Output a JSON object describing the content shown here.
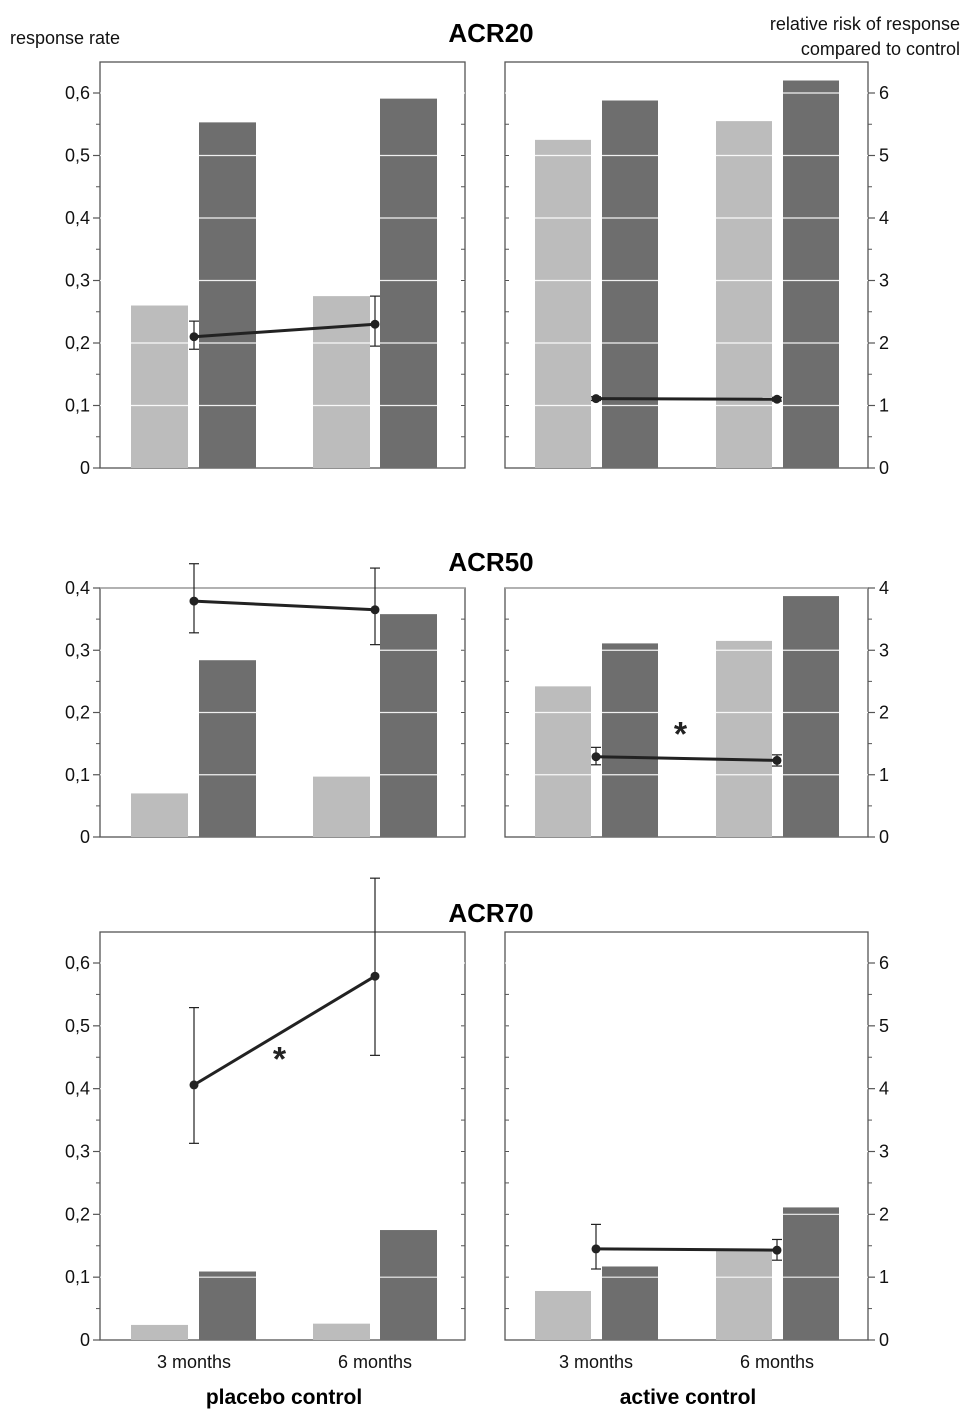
{
  "figure": {
    "left_axis_label": "response rate",
    "right_axis_label_line1": "relative risk of response",
    "right_axis_label_line2": "compared to control",
    "time_labels": [
      "3 months",
      "6 months"
    ],
    "group_labels": [
      "placebo control",
      "active control"
    ]
  },
  "colors": {
    "control_bar": "#bcbcbc",
    "treatment_bar": "#6e6e6e",
    "line": "#222222",
    "frame": "#555555"
  },
  "chart_data": [
    {
      "type": "bar",
      "title": "ACR20",
      "panel": "placebo control",
      "categories": [
        "3 months",
        "6 months"
      ],
      "ylim": [
        0,
        0.6
      ],
      "y_ticks": [
        "0",
        "0,1",
        "0,2",
        "0,3",
        "0,4",
        "0,5",
        "0,6"
      ],
      "y2lim": [
        0,
        6
      ],
      "y2_ticks": [
        "0",
        "1",
        "2",
        "3",
        "4",
        "5",
        "6"
      ],
      "series": [
        {
          "values": [
            0.26,
            0.275
          ]
        },
        {
          "values": [
            0.553,
            0.591
          ]
        }
      ],
      "relative_risk": {
        "values": [
          2.1,
          2.3
        ],
        "error_low": [
          1.9,
          1.95
        ],
        "error_high": [
          2.35,
          2.75
        ]
      },
      "significant": false
    },
    {
      "type": "bar",
      "title": "ACR20",
      "panel": "active control",
      "categories": [
        "3 months",
        "6 months"
      ],
      "ylim": [
        0,
        0.6
      ],
      "y2lim": [
        0,
        6
      ],
      "y2_ticks": [
        "0",
        "1",
        "2",
        "3",
        "4",
        "5",
        "6"
      ],
      "series": [
        {
          "values": [
            0.525,
            0.555
          ]
        },
        {
          "values": [
            0.588,
            0.62
          ]
        }
      ],
      "relative_risk": {
        "values": [
          1.11,
          1.1
        ],
        "error_low": [
          1.08,
          1.07
        ],
        "error_high": [
          1.14,
          1.13
        ]
      },
      "significant": false
    },
    {
      "type": "bar",
      "title": "ACR50",
      "panel": "placebo control",
      "categories": [
        "3 months",
        "6 months"
      ],
      "ylim": [
        0,
        0.4
      ],
      "y_ticks": [
        "0",
        "0,1",
        "0,2",
        "0,3",
        "0,4"
      ],
      "y2lim": [
        0,
        4
      ],
      "y2_ticks": [
        "0",
        "1",
        "2",
        "3",
        "4"
      ],
      "series": [
        {
          "values": [
            0.07,
            0.097
          ]
        },
        {
          "values": [
            0.284,
            0.358
          ]
        }
      ],
      "relative_risk": {
        "values": [
          3.79,
          3.65
        ],
        "error_low": [
          3.28,
          3.09
        ],
        "error_high": [
          4.39,
          4.32
        ]
      },
      "significant": false
    },
    {
      "type": "bar",
      "title": "ACR50",
      "panel": "active control",
      "categories": [
        "3 months",
        "6 months"
      ],
      "ylim": [
        0,
        0.4
      ],
      "y2lim": [
        0,
        4
      ],
      "y2_ticks": [
        "0",
        "1",
        "2",
        "3",
        "4"
      ],
      "series": [
        {
          "values": [
            0.242,
            0.315
          ]
        },
        {
          "values": [
            0.311,
            0.387
          ]
        }
      ],
      "relative_risk": {
        "values": [
          1.29,
          1.23
        ],
        "error_low": [
          1.16,
          1.14
        ],
        "error_high": [
          1.44,
          1.32
        ]
      },
      "significant": true,
      "annotation": "*"
    },
    {
      "type": "bar",
      "title": "ACR70",
      "panel": "placebo control",
      "categories": [
        "3 months",
        "6 months"
      ],
      "ylim": [
        0,
        0.6
      ],
      "y_ticks": [
        "0",
        "0,1",
        "0,2",
        "0,3",
        "0,4",
        "0,5",
        "0,6"
      ],
      "y2lim": [
        0,
        6
      ],
      "y2_ticks": [
        "0",
        "1",
        "2",
        "3",
        "4",
        "5",
        "6"
      ],
      "series": [
        {
          "values": [
            0.024,
            0.026
          ]
        },
        {
          "values": [
            0.109,
            0.175
          ]
        }
      ],
      "relative_risk": {
        "values": [
          4.06,
          5.79
        ],
        "error_low": [
          3.13,
          4.53
        ],
        "error_high": [
          5.29,
          7.35
        ]
      },
      "significant": true,
      "annotation": "*"
    },
    {
      "type": "bar",
      "title": "ACR70",
      "panel": "active control",
      "categories": [
        "3 months",
        "6 months"
      ],
      "ylim": [
        0,
        0.6
      ],
      "y2lim": [
        0,
        6
      ],
      "y2_ticks": [
        "0",
        "1",
        "2",
        "3",
        "4",
        "5",
        "6"
      ],
      "series": [
        {
          "values": [
            0.078,
            0.143
          ]
        },
        {
          "values": [
            0.117,
            0.211
          ]
        }
      ],
      "relative_risk": {
        "values": [
          1.45,
          1.43
        ],
        "error_low": [
          1.13,
          1.27
        ],
        "error_high": [
          1.84,
          1.6
        ]
      },
      "significant": false
    }
  ]
}
